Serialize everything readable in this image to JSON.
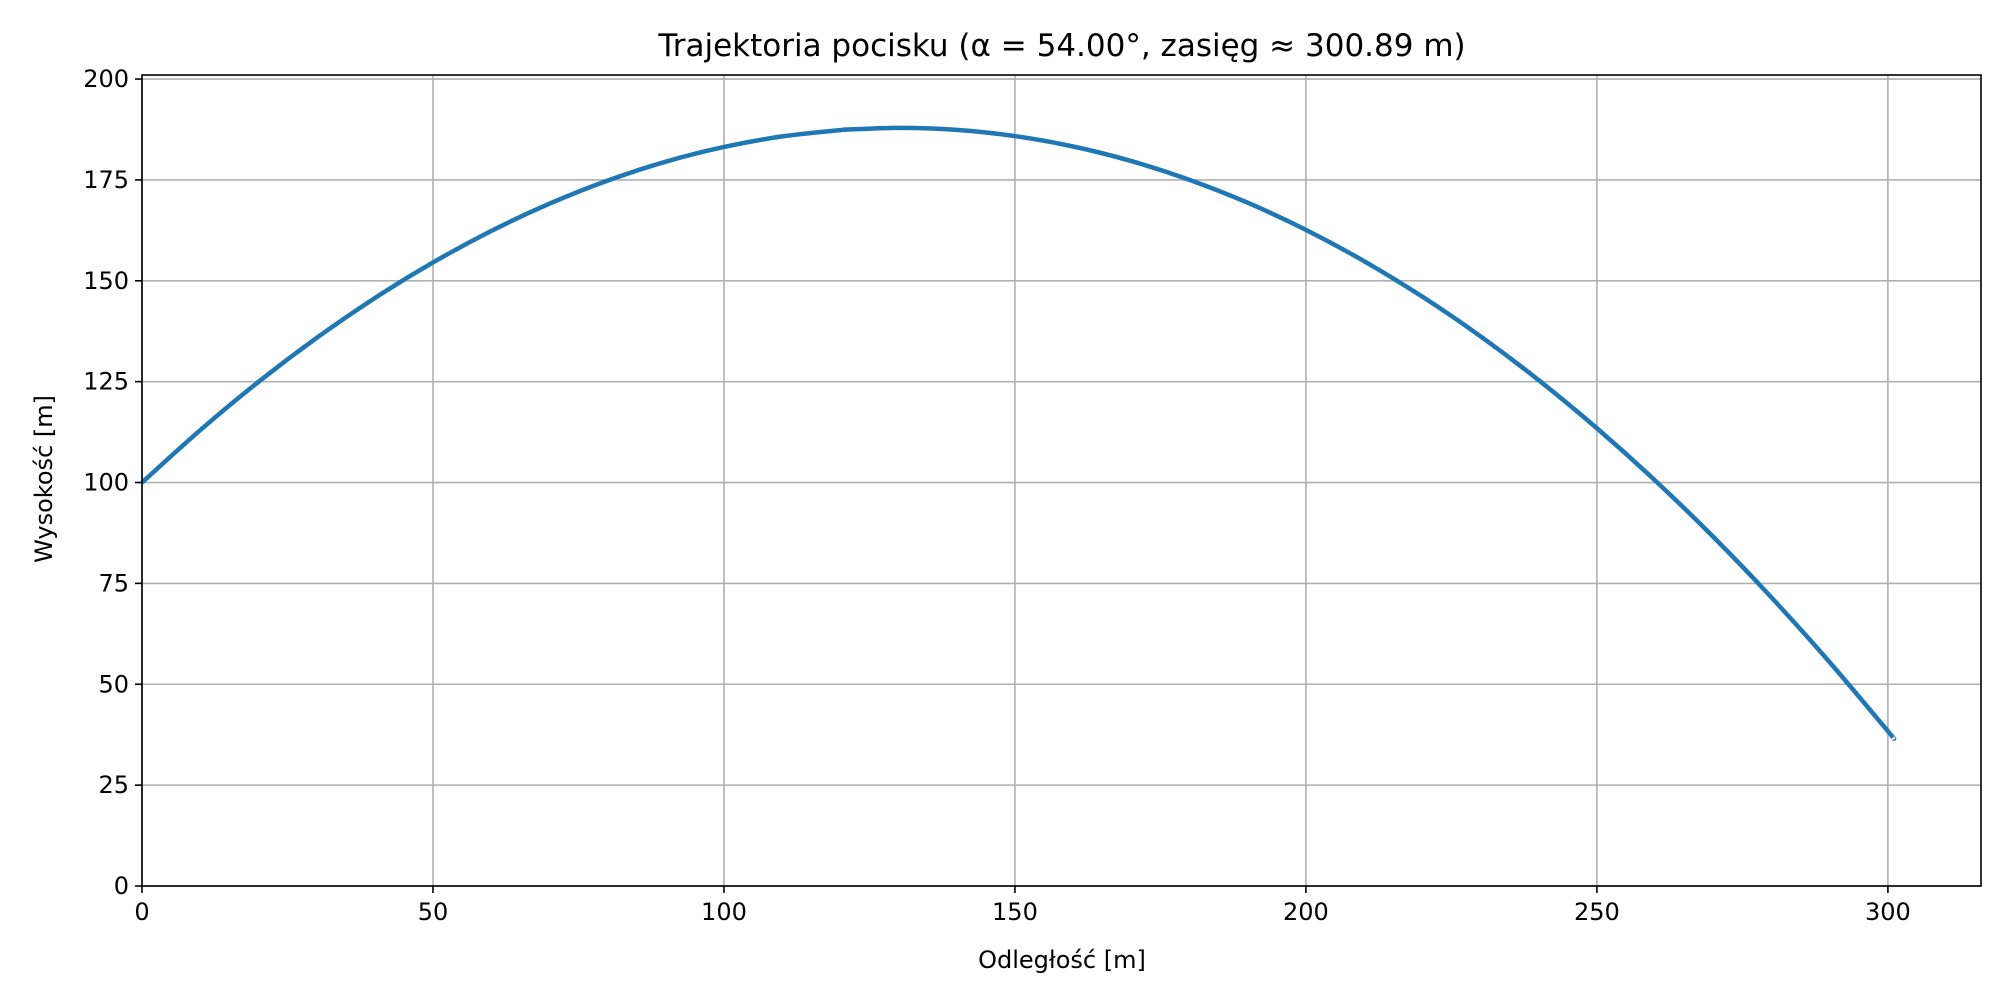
{
  "chart_data": {
    "type": "line",
    "title": "Trajektoria pocisku (α = 54.00°, zasięg ≈ 300.89 m)",
    "xlabel": "Odległość [m]",
    "ylabel": "Wysokość [m]",
    "xlim": [
      0,
      316
    ],
    "ylim": [
      0,
      201
    ],
    "xticks": [
      0,
      50,
      100,
      150,
      200,
      250,
      300
    ],
    "yticks": [
      0,
      25,
      50,
      75,
      100,
      125,
      150,
      175,
      200
    ],
    "xtick_labels": [
      "0",
      "50",
      "100",
      "150",
      "200",
      "250",
      "300"
    ],
    "ytick_labels": [
      "0",
      "25",
      "50",
      "75",
      "100",
      "125",
      "150",
      "175",
      "200"
    ],
    "grid": true,
    "series": [
      {
        "color": "#1f77b4",
        "x": [
          0,
          10,
          20,
          30,
          40,
          50,
          60,
          70,
          80,
          90,
          100,
          110,
          120,
          121.26,
          130,
          140,
          150,
          160,
          170,
          180,
          190,
          200,
          210,
          220,
          230,
          240,
          250,
          260,
          270,
          280,
          290,
          300,
          300.89
        ],
        "y": [
          100,
          112.98,
          124.93,
          135.83,
          145.71,
          154.54,
          162.34,
          169.1,
          174.83,
          179.51,
          183.16,
          185.78,
          187.35,
          187.48,
          187.89,
          187.39,
          185.85,
          183.28,
          179.67,
          175.02,
          169.34,
          162.61,
          154.86,
          146.06,
          136.23,
          125.36,
          113.45,
          100.51,
          86.53,
          71.51,
          55.46,
          38.37,
          36.78
        ]
      }
    ]
  }
}
